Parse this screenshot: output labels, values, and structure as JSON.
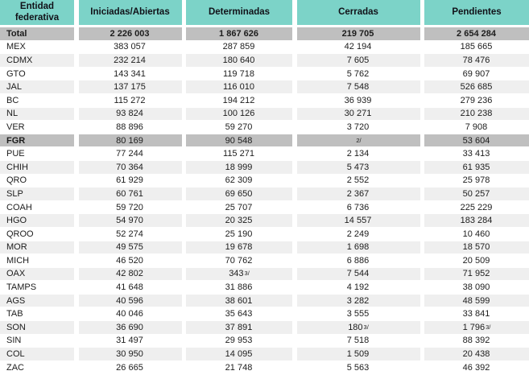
{
  "meta": {
    "description": "Statistical table of investigation case files by Mexican federative entity",
    "colors": {
      "header_bg": "#7cd3c8",
      "strong_row_bg": "#bfbfbf",
      "stripe_bg": "#efefef",
      "text": "#1c1c1c"
    }
  },
  "table": {
    "columns": [
      "Entidad\nfederativa",
      "Iniciadas/Abiertas",
      "Determinadas",
      "Cerradas",
      "Pendientes"
    ],
    "rows": [
      {
        "label": "Total",
        "variant": "total",
        "cells": [
          {
            "v": "2 226 003"
          },
          {
            "v": "1 867 626"
          },
          {
            "v": "219 705"
          },
          {
            "v": "2 654 284"
          }
        ]
      },
      {
        "label": "MEX",
        "variant": "plain",
        "cells": [
          {
            "v": "383 057"
          },
          {
            "v": "287 859"
          },
          {
            "v": "42 194"
          },
          {
            "v": "185 665"
          }
        ]
      },
      {
        "label": "CDMX",
        "variant": "shaded",
        "cells": [
          {
            "v": "232 214"
          },
          {
            "v": "180 640"
          },
          {
            "v": "7 605"
          },
          {
            "v": "78 476"
          }
        ]
      },
      {
        "label": "GTO",
        "variant": "plain",
        "cells": [
          {
            "v": "143 341"
          },
          {
            "v": "119 718"
          },
          {
            "v": "5 762"
          },
          {
            "v": "69 907"
          }
        ]
      },
      {
        "label": "JAL",
        "variant": "shaded",
        "cells": [
          {
            "v": "137 175"
          },
          {
            "v": "116 010"
          },
          {
            "v": "7 548"
          },
          {
            "v": "526 685"
          }
        ]
      },
      {
        "label": "BC",
        "variant": "plain",
        "cells": [
          {
            "v": "115 272"
          },
          {
            "v": "194 212"
          },
          {
            "v": "36 939"
          },
          {
            "v": "279 236"
          }
        ]
      },
      {
        "label": "NL",
        "variant": "shaded",
        "cells": [
          {
            "v": "93 824"
          },
          {
            "v": "100 126"
          },
          {
            "v": "30 271"
          },
          {
            "v": "210 238"
          }
        ]
      },
      {
        "label": "VER",
        "variant": "plain",
        "cells": [
          {
            "v": "88 896"
          },
          {
            "v": "59 270"
          },
          {
            "v": "3 720"
          },
          {
            "v": "7 908"
          }
        ]
      },
      {
        "label": "FGR",
        "variant": "fgr",
        "cells": [
          {
            "v": "80 169"
          },
          {
            "v": "90 548"
          },
          {
            "v": "",
            "sup": "2/"
          },
          {
            "v": "53 604"
          }
        ]
      },
      {
        "label": "PUE",
        "variant": "plain",
        "cells": [
          {
            "v": "77 244"
          },
          {
            "v": "115 271"
          },
          {
            "v": "2 134"
          },
          {
            "v": "33 413"
          }
        ]
      },
      {
        "label": "CHIH",
        "variant": "shaded",
        "cells": [
          {
            "v": "70 364"
          },
          {
            "v": "18 999"
          },
          {
            "v": "5 473"
          },
          {
            "v": "61 935"
          }
        ]
      },
      {
        "label": "QRO",
        "variant": "plain",
        "cells": [
          {
            "v": "61 929"
          },
          {
            "v": "62 309"
          },
          {
            "v": "2 552"
          },
          {
            "v": "25 978"
          }
        ]
      },
      {
        "label": "SLP",
        "variant": "shaded",
        "cells": [
          {
            "v": "60 761"
          },
          {
            "v": "69 650"
          },
          {
            "v": "2 367"
          },
          {
            "v": "50 257"
          }
        ]
      },
      {
        "label": "COAH",
        "variant": "plain",
        "cells": [
          {
            "v": "59 720"
          },
          {
            "v": "25 707"
          },
          {
            "v": "6 736"
          },
          {
            "v": "225 229"
          }
        ]
      },
      {
        "label": "HGO",
        "variant": "shaded",
        "cells": [
          {
            "v": "54 970"
          },
          {
            "v": "20 325"
          },
          {
            "v": "14 557"
          },
          {
            "v": "183 284"
          }
        ]
      },
      {
        "label": "QROO",
        "variant": "plain",
        "cells": [
          {
            "v": "52 274"
          },
          {
            "v": "25 190"
          },
          {
            "v": "2 249"
          },
          {
            "v": "10 460"
          }
        ]
      },
      {
        "label": "MOR",
        "variant": "shaded",
        "cells": [
          {
            "v": "49 575"
          },
          {
            "v": "19 678"
          },
          {
            "v": "1 698"
          },
          {
            "v": "18 570"
          }
        ]
      },
      {
        "label": "MICH",
        "variant": "plain",
        "cells": [
          {
            "v": "46 520"
          },
          {
            "v": "70 762"
          },
          {
            "v": "6 886"
          },
          {
            "v": "20 509"
          }
        ]
      },
      {
        "label": "OAX",
        "variant": "shaded",
        "cells": [
          {
            "v": "42 802"
          },
          {
            "v": "343",
            "sup": "3/"
          },
          {
            "v": "7 544"
          },
          {
            "v": "71 952"
          }
        ]
      },
      {
        "label": "TAMPS",
        "variant": "plain",
        "cells": [
          {
            "v": "41 648"
          },
          {
            "v": "31 886"
          },
          {
            "v": "4 192"
          },
          {
            "v": "38 090"
          }
        ]
      },
      {
        "label": "AGS",
        "variant": "shaded",
        "cells": [
          {
            "v": "40 596"
          },
          {
            "v": "38 601"
          },
          {
            "v": "3 282"
          },
          {
            "v": "48 599"
          }
        ]
      },
      {
        "label": "TAB",
        "variant": "plain",
        "cells": [
          {
            "v": "40 046"
          },
          {
            "v": "35 643"
          },
          {
            "v": "3 555"
          },
          {
            "v": "33 841"
          }
        ]
      },
      {
        "label": "SON",
        "variant": "shaded",
        "cells": [
          {
            "v": "36 690"
          },
          {
            "v": "37 891"
          },
          {
            "v": "180",
            "sup": "3/"
          },
          {
            "v": "1 796",
            "sup": "3/"
          }
        ]
      },
      {
        "label": "SIN",
        "variant": "plain",
        "cells": [
          {
            "v": "31 497"
          },
          {
            "v": "29 953"
          },
          {
            "v": "7 518"
          },
          {
            "v": "88 392"
          }
        ]
      },
      {
        "label": "COL",
        "variant": "shaded",
        "cells": [
          {
            "v": "30 950"
          },
          {
            "v": "14 095"
          },
          {
            "v": "1 509"
          },
          {
            "v": "20 438"
          }
        ]
      },
      {
        "label": "ZAC",
        "variant": "plain",
        "cells": [
          {
            "v": "26 665"
          },
          {
            "v": "21 748"
          },
          {
            "v": "5 563"
          },
          {
            "v": "46 392"
          }
        ]
      }
    ]
  }
}
